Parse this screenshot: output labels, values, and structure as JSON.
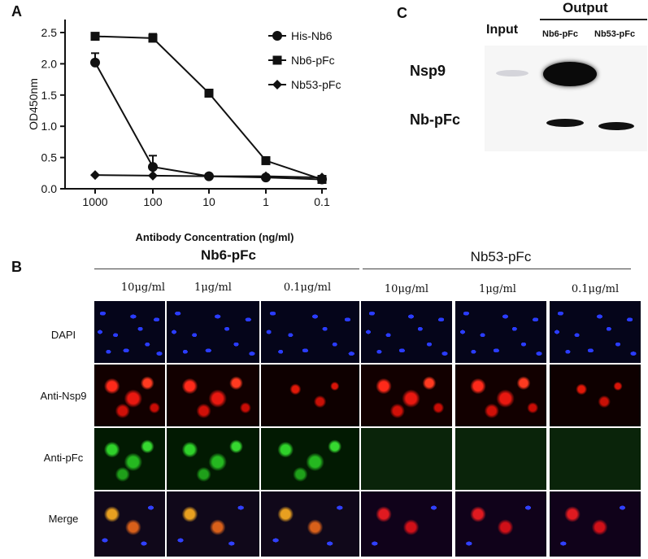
{
  "panel_labels": {
    "a": "A",
    "b": "B",
    "c": "C"
  },
  "chart_data": {
    "type": "line",
    "xlabel": "Antibody Concentration (ng/ml)",
    "ylabel": "OD450nm",
    "x_categories": [
      "1000",
      "100",
      "10",
      "1",
      "0.1"
    ],
    "y_ticks": [
      "0.0",
      "0.5",
      "1.0",
      "1.5",
      "2.0",
      "2.5"
    ],
    "ylim": [
      0,
      2.6
    ],
    "x_scale": "log (reversed, categorical ticks)",
    "legend_position": "top-right",
    "series": [
      {
        "name": "His-Nb6",
        "marker": "circle",
        "values": [
          2.02,
          0.35,
          0.2,
          0.18,
          0.15
        ],
        "error": [
          0.15,
          0.18,
          0.0,
          0.0,
          0.0
        ]
      },
      {
        "name": "Nb6-pFc",
        "marker": "square",
        "values": [
          2.44,
          2.41,
          1.53,
          0.45,
          0.15
        ],
        "error": [
          0.0,
          0.07,
          0.0,
          0.0,
          0.0
        ]
      },
      {
        "name": "Nb53-pFc",
        "marker": "diamond",
        "values": [
          0.22,
          0.21,
          0.2,
          0.2,
          0.18
        ],
        "error": [
          0,
          0,
          0,
          0,
          0
        ]
      }
    ]
  },
  "blot": {
    "output_header": "Output",
    "input_label": "Input",
    "lane_labels": [
      "Nb6-pFc",
      "Nb53-pFc"
    ],
    "row_labels": [
      "Nsp9",
      "Nb-pFc"
    ]
  },
  "microscopy": {
    "groups": [
      "Nb6-pFc",
      "Nb53-pFc"
    ],
    "concentrations": [
      "10μg/ml",
      "1μg/ml",
      "0.1μg/ml"
    ],
    "rows": [
      "DAPI",
      "Anti-Nsp9",
      "Anti-pFc",
      "Merge"
    ]
  }
}
